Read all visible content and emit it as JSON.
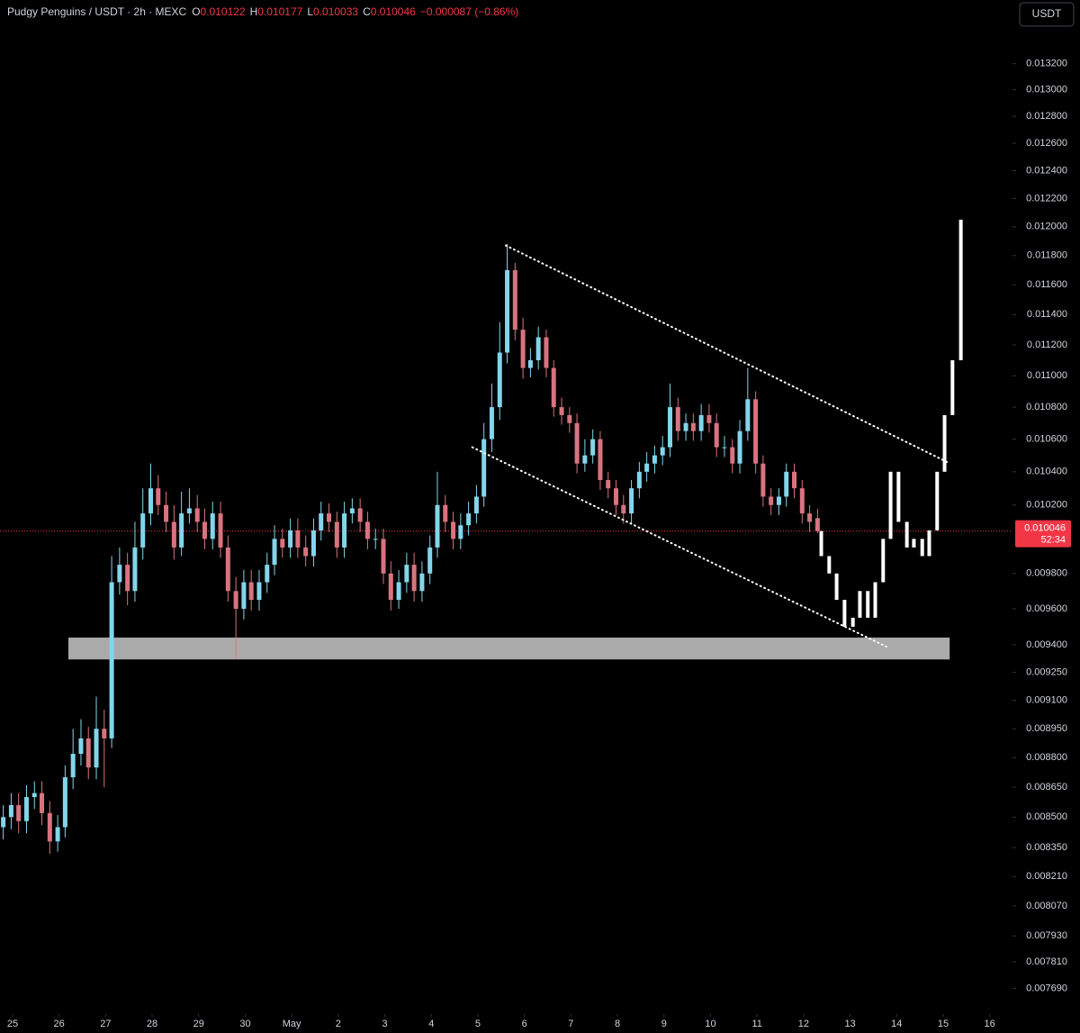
{
  "chart_data": {
    "type": "candlestick",
    "title": "Pudgy Penguins / USDT · 2h · MEXC",
    "ohlc": [
      {
        "label": "O",
        "value": 0.010122
      },
      {
        "label": "H",
        "value": 0.010177
      },
      {
        "label": "L",
        "value": 0.010033
      },
      {
        "label": "C",
        "value": 0.010046
      }
    ],
    "change": "−0.000087 (−0.86%)",
    "currency": "USDT",
    "last_price": 0.010046,
    "countdown": "52:34",
    "price_color": "#f23645",
    "log": true,
    "xlim": [
      -0.27,
      21.49
    ],
    "ylim": [
      0.00758,
      0.0137
    ],
    "xticks": [
      {
        "value": 0,
        "label": "25"
      },
      {
        "value": 1,
        "label": "26"
      },
      {
        "value": 2,
        "label": "27"
      },
      {
        "value": 3,
        "label": "28"
      },
      {
        "value": 4,
        "label": "29"
      },
      {
        "value": 5,
        "label": "30"
      },
      {
        "value": 6,
        "label": "May"
      },
      {
        "value": 7,
        "label": "2"
      },
      {
        "value": 8,
        "label": "3"
      },
      {
        "value": 9,
        "label": "4"
      },
      {
        "value": 10,
        "label": "5"
      },
      {
        "value": 11,
        "label": "6"
      },
      {
        "value": 12,
        "label": "7"
      },
      {
        "value": 13,
        "label": "8"
      },
      {
        "value": 14,
        "label": "9"
      },
      {
        "value": 15,
        "label": "10"
      },
      {
        "value": 16,
        "label": "11"
      },
      {
        "value": 17,
        "label": "12"
      },
      {
        "value": 18,
        "label": "13"
      },
      {
        "value": 19,
        "label": "14"
      },
      {
        "value": 20,
        "label": "15"
      },
      {
        "value": 21,
        "label": "16"
      }
    ],
    "yticks": [
      {
        "value": 0.0132,
        "label": "0.013200"
      },
      {
        "value": 0.013,
        "label": "0.013000"
      },
      {
        "value": 0.0128,
        "label": "0.012800"
      },
      {
        "value": 0.0126,
        "label": "0.012600"
      },
      {
        "value": 0.0124,
        "label": "0.012400"
      },
      {
        "value": 0.0122,
        "label": "0.012200"
      },
      {
        "value": 0.012,
        "label": "0.012000"
      },
      {
        "value": 0.0118,
        "label": "0.011800"
      },
      {
        "value": 0.0116,
        "label": "0.011600"
      },
      {
        "value": 0.0114,
        "label": "0.011400"
      },
      {
        "value": 0.0112,
        "label": "0.011200"
      },
      {
        "value": 0.011,
        "label": "0.011000"
      },
      {
        "value": 0.0108,
        "label": "0.010800"
      },
      {
        "value": 0.0106,
        "label": "0.010600"
      },
      {
        "value": 0.0104,
        "label": "0.010400"
      },
      {
        "value": 0.0102,
        "label": "0.010200"
      },
      {
        "value": 0.0098,
        "label": "0.009800"
      },
      {
        "value": 0.0096,
        "label": "0.009600"
      },
      {
        "value": 0.0094,
        "label": "0.009400"
      },
      {
        "value": 0.00925,
        "label": "0.009250"
      },
      {
        "value": 0.0091,
        "label": "0.009100"
      },
      {
        "value": 0.00895,
        "label": "0.008950"
      },
      {
        "value": 0.0088,
        "label": "0.008800"
      },
      {
        "value": 0.00865,
        "label": "0.008650"
      },
      {
        "value": 0.0085,
        "label": "0.008500"
      },
      {
        "value": 0.00835,
        "label": "0.008350"
      },
      {
        "value": 0.00821,
        "label": "0.008210"
      },
      {
        "value": 0.00807,
        "label": "0.008070"
      },
      {
        "value": 0.00793,
        "label": "0.007930"
      },
      {
        "value": 0.00781,
        "label": "0.007810"
      },
      {
        "value": 0.00769,
        "label": "0.007690"
      }
    ],
    "series": [
      {
        "color_up": "#83d5ea",
        "color_down": "#d8737f",
        "x": [
          -0.2,
          -0.03,
          0.13,
          0.3,
          0.47,
          0.63,
          0.8,
          0.97,
          1.13,
          1.3,
          1.47,
          1.63,
          1.8,
          1.97,
          2.13,
          2.3,
          2.47,
          2.63,
          2.8,
          2.97,
          3.13,
          3.3,
          3.47,
          3.63,
          3.8,
          3.97,
          4.13,
          4.3,
          4.47,
          4.63,
          4.8,
          4.97,
          5.13,
          5.3,
          5.47,
          5.63,
          5.8,
          5.97,
          6.13,
          6.3,
          6.47,
          6.63,
          6.8,
          6.97,
          7.13,
          7.3,
          7.47,
          7.63,
          7.8,
          7.97,
          8.13,
          8.3,
          8.47,
          8.63,
          8.8,
          8.97,
          9.13,
          9.3,
          9.47,
          9.63,
          9.8,
          9.97,
          10.13,
          10.3,
          10.47,
          10.63,
          10.8,
          10.97,
          11.13,
          11.3,
          11.47,
          11.63,
          11.8,
          11.97,
          12.13,
          12.3,
          12.47,
          12.63,
          12.8,
          12.97,
          13.13,
          13.3,
          13.47,
          13.63,
          13.8,
          13.97,
          14.13,
          14.3,
          14.47,
          14.63,
          14.8,
          14.97,
          15.13,
          15.3,
          15.47,
          15.63,
          15.8,
          15.97,
          16.13,
          16.3,
          16.47,
          16.63,
          16.8,
          16.97,
          17.13,
          17.3
        ],
        "open": [
          0.00845,
          0.0085,
          0.00856,
          0.00848,
          0.0086,
          0.00862,
          0.00852,
          0.00838,
          0.00845,
          0.0087,
          0.00882,
          0.0089,
          0.00875,
          0.00895,
          0.0089,
          0.00975,
          0.00985,
          0.0097,
          0.00995,
          0.01015,
          0.0103,
          0.0102,
          0.0101,
          0.00995,
          0.01015,
          0.01018,
          0.0101,
          0.01,
          0.01015,
          0.00995,
          0.0097,
          0.0096,
          0.00975,
          0.00965,
          0.00975,
          0.00985,
          0.01,
          0.00995,
          0.01005,
          0.00995,
          0.0099,
          0.01005,
          0.01015,
          0.0101,
          0.00995,
          0.01015,
          0.01018,
          0.0101,
          0.01,
          0.01,
          0.0098,
          0.00965,
          0.00975,
          0.00985,
          0.0097,
          0.0098,
          0.00995,
          0.0102,
          0.0101,
          0.01,
          0.01008,
          0.01015,
          0.01025,
          0.0106,
          0.0108,
          0.01115,
          0.0117,
          0.0113,
          0.01105,
          0.0111,
          0.01125,
          0.01105,
          0.0108,
          0.01075,
          0.0107,
          0.01045,
          0.0105,
          0.0106,
          0.01035,
          0.0103,
          0.0102,
          0.01015,
          0.0103,
          0.0104,
          0.01045,
          0.0105,
          0.01055,
          0.0108,
          0.01065,
          0.0107,
          0.01065,
          0.01075,
          0.0107,
          0.01055,
          0.01055,
          0.01045,
          0.01065,
          0.01085,
          0.01045,
          0.01025,
          0.0102,
          0.01025,
          0.0104,
          0.0103,
          0.01015,
          0.010122
        ],
        "high": [
          0.00856,
          0.00862,
          0.00862,
          0.00866,
          0.00868,
          0.00868,
          0.00858,
          0.00851,
          0.00876,
          0.00895,
          0.009,
          0.00896,
          0.00912,
          0.00905,
          0.0099,
          0.00995,
          0.00992,
          0.0101,
          0.0103,
          0.01045,
          0.01038,
          0.01028,
          0.0102,
          0.01028,
          0.0103,
          0.01026,
          0.01018,
          0.01022,
          0.01022,
          0.01002,
          0.00978,
          0.00982,
          0.00982,
          0.00982,
          0.00992,
          0.01008,
          0.01006,
          0.01012,
          0.01012,
          0.01002,
          0.01012,
          0.01022,
          0.01021,
          0.01016,
          0.01022,
          0.01024,
          0.01024,
          0.01016,
          0.01006,
          0.01006,
          0.00987,
          0.00982,
          0.00992,
          0.00992,
          0.00987,
          0.01002,
          0.0104,
          0.01026,
          0.01016,
          0.01015,
          0.01022,
          0.01032,
          0.0107,
          0.01095,
          0.01135,
          0.01188,
          0.01175,
          0.01138,
          0.01118,
          0.01132,
          0.0113,
          0.0111,
          0.01086,
          0.0108,
          0.01076,
          0.0106,
          0.01066,
          0.01065,
          0.0104,
          0.01035,
          0.01026,
          0.01035,
          0.01046,
          0.01052,
          0.01056,
          0.01062,
          0.01095,
          0.01086,
          0.01076,
          0.01076,
          0.01082,
          0.01082,
          0.01076,
          0.01062,
          0.0106,
          0.01072,
          0.01105,
          0.0109,
          0.0105,
          0.0103,
          0.0103,
          0.01045,
          0.01045,
          0.01035,
          0.0102,
          0.010177
        ],
        "low": [
          0.00839,
          0.00844,
          0.00842,
          0.00842,
          0.00854,
          0.00846,
          0.00832,
          0.00833,
          0.0084,
          0.00864,
          0.00876,
          0.00869,
          0.00869,
          0.00865,
          0.00885,
          0.00968,
          0.00962,
          0.00964,
          0.00988,
          0.01008,
          0.01014,
          0.01004,
          0.00988,
          0.0099,
          0.01009,
          0.01004,
          0.00994,
          0.00994,
          0.00989,
          0.00964,
          0.00932,
          0.00954,
          0.00959,
          0.00959,
          0.00969,
          0.00979,
          0.00989,
          0.00989,
          0.00989,
          0.00984,
          0.00984,
          0.00999,
          0.01004,
          0.00989,
          0.00989,
          0.01009,
          0.01004,
          0.00994,
          0.00994,
          0.00974,
          0.00959,
          0.0096,
          0.00969,
          0.00964,
          0.00964,
          0.00974,
          0.00989,
          0.01004,
          0.00994,
          0.00994,
          0.01002,
          0.01009,
          0.01019,
          0.01052,
          0.01072,
          0.01108,
          0.01123,
          0.01098,
          0.01099,
          0.01104,
          0.01099,
          0.01074,
          0.01069,
          0.01064,
          0.01039,
          0.0104,
          0.01045,
          0.01029,
          0.01024,
          0.01014,
          0.01009,
          0.01009,
          0.01024,
          0.01034,
          0.01039,
          0.01044,
          0.01049,
          0.01059,
          0.01059,
          0.01059,
          0.01059,
          0.01064,
          0.01049,
          0.01049,
          0.01039,
          0.01039,
          0.01059,
          0.01039,
          0.01019,
          0.01014,
          0.01014,
          0.01019,
          0.01024,
          0.01009,
          0.01004,
          0.010033
        ],
        "close": [
          0.0085,
          0.00856,
          0.00848,
          0.0086,
          0.00862,
          0.00852,
          0.00838,
          0.00845,
          0.0087,
          0.00882,
          0.0089,
          0.00875,
          0.00895,
          0.0089,
          0.00975,
          0.00985,
          0.0097,
          0.00995,
          0.01015,
          0.0103,
          0.0102,
          0.0101,
          0.00995,
          0.01015,
          0.01018,
          0.0101,
          0.01,
          0.01015,
          0.00995,
          0.0097,
          0.0096,
          0.00975,
          0.00965,
          0.00975,
          0.00985,
          0.01,
          0.00995,
          0.01005,
          0.00995,
          0.0099,
          0.01005,
          0.01015,
          0.0101,
          0.00995,
          0.01015,
          0.01018,
          0.0101,
          0.01,
          0.01,
          0.0098,
          0.00965,
          0.00975,
          0.00985,
          0.0097,
          0.0098,
          0.00995,
          0.0102,
          0.0101,
          0.01,
          0.01008,
          0.01015,
          0.01025,
          0.0106,
          0.0108,
          0.01115,
          0.0117,
          0.0113,
          0.01105,
          0.0111,
          0.01125,
          0.01105,
          0.0108,
          0.01075,
          0.0107,
          0.01045,
          0.0105,
          0.0106,
          0.01035,
          0.0103,
          0.0102,
          0.01015,
          0.0103,
          0.0104,
          0.01045,
          0.0105,
          0.01055,
          0.0108,
          0.01065,
          0.0107,
          0.01065,
          0.01075,
          0.0107,
          0.01055,
          0.01055,
          0.01045,
          0.01065,
          0.01085,
          0.01045,
          0.01025,
          0.0102,
          0.01025,
          0.0104,
          0.0103,
          0.01015,
          0.0101,
          0.010046
        ]
      },
      {
        "color": "#ffffff",
        "x": [
          17.39,
          17.56,
          17.72,
          17.89,
          18.07,
          18.22,
          18.39,
          18.55,
          18.72,
          18.88,
          19.05,
          19.23,
          19.38,
          19.56,
          19.71,
          19.88,
          20.04,
          20.21,
          20.39
        ],
        "open": [
          0.010046,
          0.0099,
          0.0098,
          0.00965,
          0.0095,
          0.00955,
          0.0097,
          0.00955,
          0.00975,
          0.01,
          0.0104,
          0.0101,
          0.00995,
          0.01,
          0.0099,
          0.01005,
          0.0104,
          0.01075,
          0.0111
        ],
        "close": [
          0.0099,
          0.0098,
          0.00965,
          0.0095,
          0.00955,
          0.0097,
          0.00955,
          0.00975,
          0.01,
          0.0104,
          0.0101,
          0.00995,
          0.01,
          0.0099,
          0.01005,
          0.0104,
          0.01075,
          0.0111,
          0.01205
        ]
      }
    ],
    "trendlines": [
      {
        "x": [
          10.6,
          20.08
        ],
        "y": [
          0.01187,
          0.01046
        ],
        "color": "#ffffff"
      },
      {
        "x": [
          9.88,
          18.78
        ],
        "y": [
          0.01055,
          0.00939
        ],
        "color": "#ffffff"
      }
    ],
    "zone": {
      "x": [
        1.2,
        20.14
      ],
      "y": [
        0.00932,
        0.00944
      ],
      "color": "#c8c8c8"
    }
  }
}
